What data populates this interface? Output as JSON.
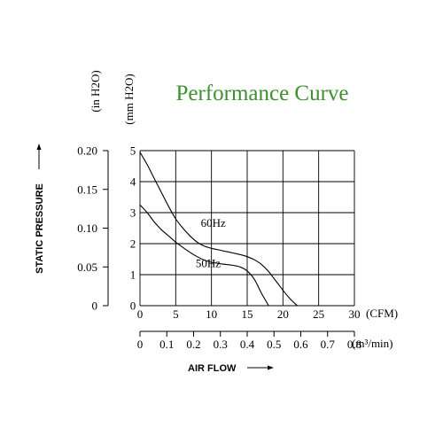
{
  "chart_data": {
    "type": "line",
    "title": "Performance Curve",
    "title_color": "#3f8f2f",
    "xlabel": "AIR FLOW",
    "ylabel": "STATIC PRESSURE",
    "x_axis_primary": {
      "unit": "(CFM)",
      "range": [
        0,
        30
      ],
      "ticks": [
        "0",
        "5",
        "10",
        "15",
        "20",
        "25",
        "30"
      ]
    },
    "x_axis_secondary": {
      "unit": "(m³/min)",
      "range": [
        0,
        0.8
      ],
      "ticks": [
        "0",
        "0.1",
        "0.2",
        "0.3",
        "0.4",
        "0.5",
        "0.6",
        "0.7",
        "0.8"
      ]
    },
    "y_axis_primary": {
      "unit": "(mm H2O)",
      "range": [
        0,
        5
      ],
      "ticks": [
        "0",
        "1",
        "2",
        "3",
        "4",
        "5"
      ]
    },
    "y_axis_secondary": {
      "unit": "(in H2O)",
      "range": [
        0,
        0.2
      ],
      "ticks": [
        "0",
        "0.05",
        "0.10",
        "0.15",
        "0.20"
      ]
    },
    "grid": true,
    "series": [
      {
        "name": "60Hz",
        "x": [
          0,
          1,
          2,
          3,
          4,
          5,
          6,
          7,
          8,
          9,
          10,
          11,
          12,
          13,
          14,
          15,
          16,
          17,
          18,
          19,
          20,
          21,
          22
        ],
        "y": [
          4.95,
          4.55,
          4.1,
          3.65,
          3.2,
          2.8,
          2.5,
          2.25,
          2.05,
          1.92,
          1.85,
          1.8,
          1.75,
          1.7,
          1.65,
          1.58,
          1.48,
          1.33,
          1.1,
          0.8,
          0.5,
          0.22,
          0
        ]
      },
      {
        "name": "50Hz",
        "x": [
          0,
          1,
          2,
          3,
          4,
          5,
          6,
          7,
          8,
          9,
          10,
          11,
          12,
          13,
          14,
          15,
          16,
          17,
          18
        ],
        "y": [
          3.25,
          3.0,
          2.7,
          2.45,
          2.25,
          2.05,
          1.88,
          1.72,
          1.58,
          1.47,
          1.4,
          1.36,
          1.33,
          1.3,
          1.25,
          1.12,
          0.85,
          0.4,
          0
        ]
      }
    ]
  }
}
